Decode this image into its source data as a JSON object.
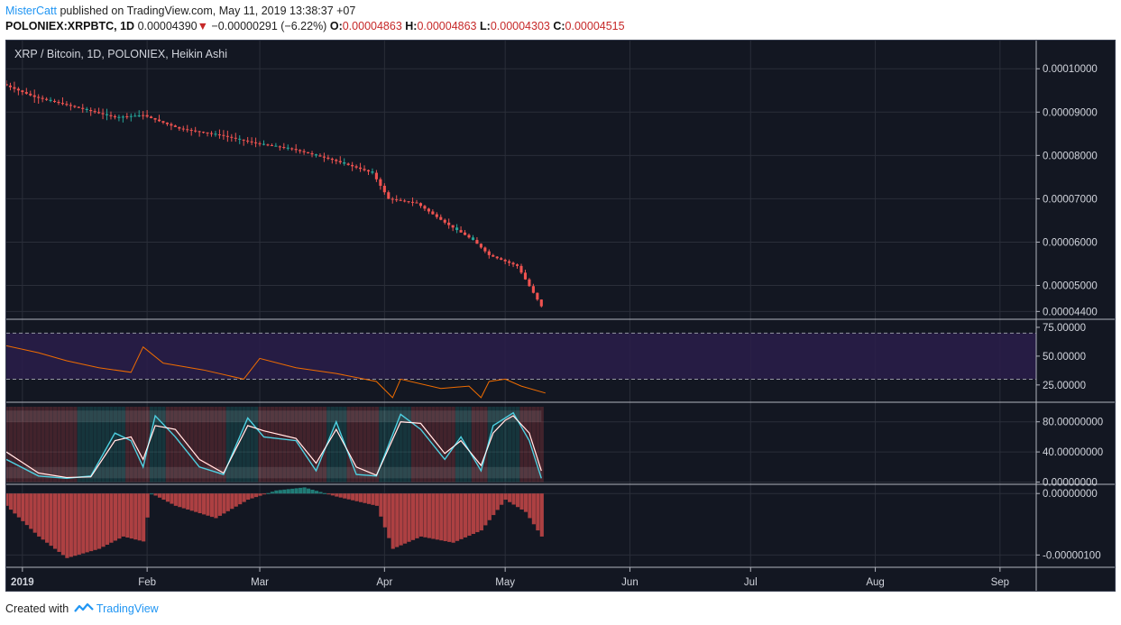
{
  "header": {
    "author": "MisterCatt",
    "published_text": "published on TradingView.com, May 11, 2019 13:38:37 +07",
    "symbol": "POLONIEX:XRPBTC, 1D",
    "price": "0.00004390",
    "change_arrow": "▼",
    "change": "−0.00000291 (−6.22%)",
    "o_label": "O:",
    "o_value": "0.00004863",
    "h_label": "H:",
    "h_value": "0.00004863",
    "l_label": "L:",
    "l_value": "0.00004303",
    "c_label": "C:",
    "c_value": "0.00004515"
  },
  "footer": {
    "created_with": "Created with",
    "brand": "TradingView"
  },
  "colors": {
    "background": "#131722",
    "up": "#26a69a",
    "down": "#ef5350",
    "rsi_line": "#ef6c00",
    "rsi_band": "#2a1d4a",
    "stoch_k": "#4dd0e1",
    "stoch_d": "#ffffff"
  },
  "chart_data": {
    "type": "candlestick",
    "title": "XRP / Bitcoin, 1D, POLONIEX, Heikin Ashi",
    "x_start": "2018-12-28",
    "x_end": "2019-09-10",
    "x_tick_labels": [
      {
        "date": "2019-01-01",
        "label": "2019"
      },
      {
        "date": "2019-02-01",
        "label": "Feb"
      },
      {
        "date": "2019-03-01",
        "label": "Mar"
      },
      {
        "date": "2019-04-01",
        "label": "Apr"
      },
      {
        "date": "2019-05-01",
        "label": "May"
      },
      {
        "date": "2019-06-01",
        "label": "Jun"
      },
      {
        "date": "2019-07-01",
        "label": "Jul"
      },
      {
        "date": "2019-08-01",
        "label": "Aug"
      },
      {
        "date": "2019-09-01",
        "label": "Sep"
      }
    ],
    "price_axis": {
      "ylim": [
        4.22e-05,
        0.0001065
      ],
      "ticks": [
        {
          "v": 0.0001,
          "label": "0.00010000"
        },
        {
          "v": 9e-05,
          "label": "0.00009000"
        },
        {
          "v": 8e-05,
          "label": "0.00008000"
        },
        {
          "v": 7e-05,
          "label": "0.00007000"
        },
        {
          "v": 6e-05,
          "label": "0.00006000"
        },
        {
          "v": 5e-05,
          "label": "0.00005000"
        },
        {
          "v": 4.4e-05,
          "label": "0.00004400"
        }
      ]
    },
    "price_path": [
      [
        "2018-12-28",
        9.65e-05
      ],
      [
        "2019-01-05",
        9.35e-05
      ],
      [
        "2019-01-15",
        9.12e-05
      ],
      [
        "2019-01-25",
        8.88e-05
      ],
      [
        "2019-02-01",
        8.93e-05
      ],
      [
        "2019-02-10",
        8.62e-05
      ],
      [
        "2019-02-20",
        8.47e-05
      ],
      [
        "2019-03-01",
        8.28e-05
      ],
      [
        "2019-03-10",
        8.15e-05
      ],
      [
        "2019-03-20",
        7.9e-05
      ],
      [
        "2019-03-30",
        7.6e-05
      ],
      [
        "2019-04-03",
        7e-05
      ],
      [
        "2019-04-10",
        6.9e-05
      ],
      [
        "2019-04-17",
        6.45e-05
      ],
      [
        "2019-04-24",
        6.05e-05
      ],
      [
        "2019-04-28",
        5.7e-05
      ],
      [
        "2019-05-05",
        5.45e-05
      ],
      [
        "2019-05-11",
        4.52e-05
      ]
    ],
    "rsi": {
      "ylim": [
        10,
        82
      ],
      "upper_band": 70,
      "lower_band": 30,
      "ticks": [
        {
          "v": 75,
          "label": "75.00000"
        },
        {
          "v": 50,
          "label": "50.00000"
        },
        {
          "v": 25,
          "label": "25.00000"
        }
      ],
      "path": [
        [
          "2018-12-28",
          59
        ],
        [
          "2019-01-05",
          53
        ],
        [
          "2019-01-12",
          46
        ],
        [
          "2019-01-20",
          40
        ],
        [
          "2019-01-28",
          36
        ],
        [
          "2019-01-31",
          58
        ],
        [
          "2019-02-05",
          44
        ],
        [
          "2019-02-15",
          38
        ],
        [
          "2019-02-25",
          30
        ],
        [
          "2019-03-01",
          48
        ],
        [
          "2019-03-10",
          40
        ],
        [
          "2019-03-20",
          35
        ],
        [
          "2019-03-30",
          28
        ],
        [
          "2019-04-03",
          14
        ],
        [
          "2019-04-05",
          30
        ],
        [
          "2019-04-15",
          22
        ],
        [
          "2019-04-22",
          24
        ],
        [
          "2019-04-25",
          14
        ],
        [
          "2019-04-27",
          28
        ],
        [
          "2019-05-01",
          30
        ],
        [
          "2019-05-05",
          24
        ],
        [
          "2019-05-11",
          18
        ]
      ]
    },
    "stoch": {
      "ylim": [
        -3,
        106
      ],
      "ticks": [
        {
          "v": 80,
          "label": "80.00000000"
        },
        {
          "v": 40,
          "label": "40.00000000"
        },
        {
          "v": 0,
          "label": "0.00000000"
        }
      ],
      "k": [
        [
          "2018-12-28",
          30
        ],
        [
          "2019-01-05",
          8
        ],
        [
          "2019-01-12",
          5
        ],
        [
          "2019-01-18",
          8
        ],
        [
          "2019-01-24",
          65
        ],
        [
          "2019-01-28",
          55
        ],
        [
          "2019-01-31",
          20
        ],
        [
          "2019-02-03",
          88
        ],
        [
          "2019-02-08",
          60
        ],
        [
          "2019-02-14",
          20
        ],
        [
          "2019-02-20",
          10
        ],
        [
          "2019-02-26",
          85
        ],
        [
          "2019-03-02",
          60
        ],
        [
          "2019-03-10",
          55
        ],
        [
          "2019-03-15",
          15
        ],
        [
          "2019-03-20",
          80
        ],
        [
          "2019-03-25",
          10
        ],
        [
          "2019-03-30",
          8
        ],
        [
          "2019-04-05",
          90
        ],
        [
          "2019-04-10",
          70
        ],
        [
          "2019-04-16",
          30
        ],
        [
          "2019-04-20",
          60
        ],
        [
          "2019-04-25",
          15
        ],
        [
          "2019-04-28",
          75
        ],
        [
          "2019-05-01",
          85
        ],
        [
          "2019-05-03",
          92
        ],
        [
          "2019-05-07",
          55
        ],
        [
          "2019-05-10",
          5
        ]
      ],
      "d": [
        [
          "2018-12-28",
          40
        ],
        [
          "2019-01-05",
          12
        ],
        [
          "2019-01-12",
          6
        ],
        [
          "2019-01-18",
          7
        ],
        [
          "2019-01-24",
          55
        ],
        [
          "2019-01-28",
          60
        ],
        [
          "2019-01-31",
          30
        ],
        [
          "2019-02-03",
          75
        ],
        [
          "2019-02-08",
          70
        ],
        [
          "2019-02-14",
          30
        ],
        [
          "2019-02-20",
          12
        ],
        [
          "2019-02-26",
          75
        ],
        [
          "2019-03-02",
          68
        ],
        [
          "2019-03-10",
          58
        ],
        [
          "2019-03-15",
          25
        ],
        [
          "2019-03-20",
          70
        ],
        [
          "2019-03-25",
          20
        ],
        [
          "2019-03-30",
          9
        ],
        [
          "2019-04-05",
          80
        ],
        [
          "2019-04-10",
          78
        ],
        [
          "2019-04-16",
          38
        ],
        [
          "2019-04-20",
          55
        ],
        [
          "2019-04-25",
          22
        ],
        [
          "2019-04-28",
          65
        ],
        [
          "2019-05-01",
          82
        ],
        [
          "2019-05-03",
          88
        ],
        [
          "2019-05-07",
          65
        ],
        [
          "2019-05-10",
          15
        ]
      ]
    },
    "macd": {
      "ylim": [
        -1.2e-06,
        1.5e-07
      ],
      "ticks": [
        {
          "v": 0,
          "label": "0.00000000"
        },
        {
          "v": -1e-06,
          "label": "-0.00000100"
        }
      ],
      "path": [
        [
          "2018-12-28",
          -2e-07
        ],
        [
          "2019-01-05",
          -7e-07
        ],
        [
          "2019-01-12",
          -1.05e-06
        ],
        [
          "2019-01-20",
          -9e-07
        ],
        [
          "2019-01-26",
          -7e-07
        ],
        [
          "2019-01-31",
          -7.8e-07
        ],
        [
          "2019-02-02",
          0.0
        ],
        [
          "2019-02-08",
          -2e-07
        ],
        [
          "2019-02-18",
          -4e-07
        ],
        [
          "2019-02-26",
          -1e-07
        ],
        [
          "2019-03-05",
          5e-08
        ],
        [
          "2019-03-12",
          1e-07
        ],
        [
          "2019-03-20",
          -5e-08
        ],
        [
          "2019-03-30",
          -2e-07
        ],
        [
          "2019-04-03",
          -9e-07
        ],
        [
          "2019-04-10",
          -7e-07
        ],
        [
          "2019-04-18",
          -8e-07
        ],
        [
          "2019-04-25",
          -6e-07
        ],
        [
          "2019-05-01",
          -1e-07
        ],
        [
          "2019-05-06",
          -3e-07
        ],
        [
          "2019-05-11",
          -8e-07
        ]
      ]
    }
  }
}
